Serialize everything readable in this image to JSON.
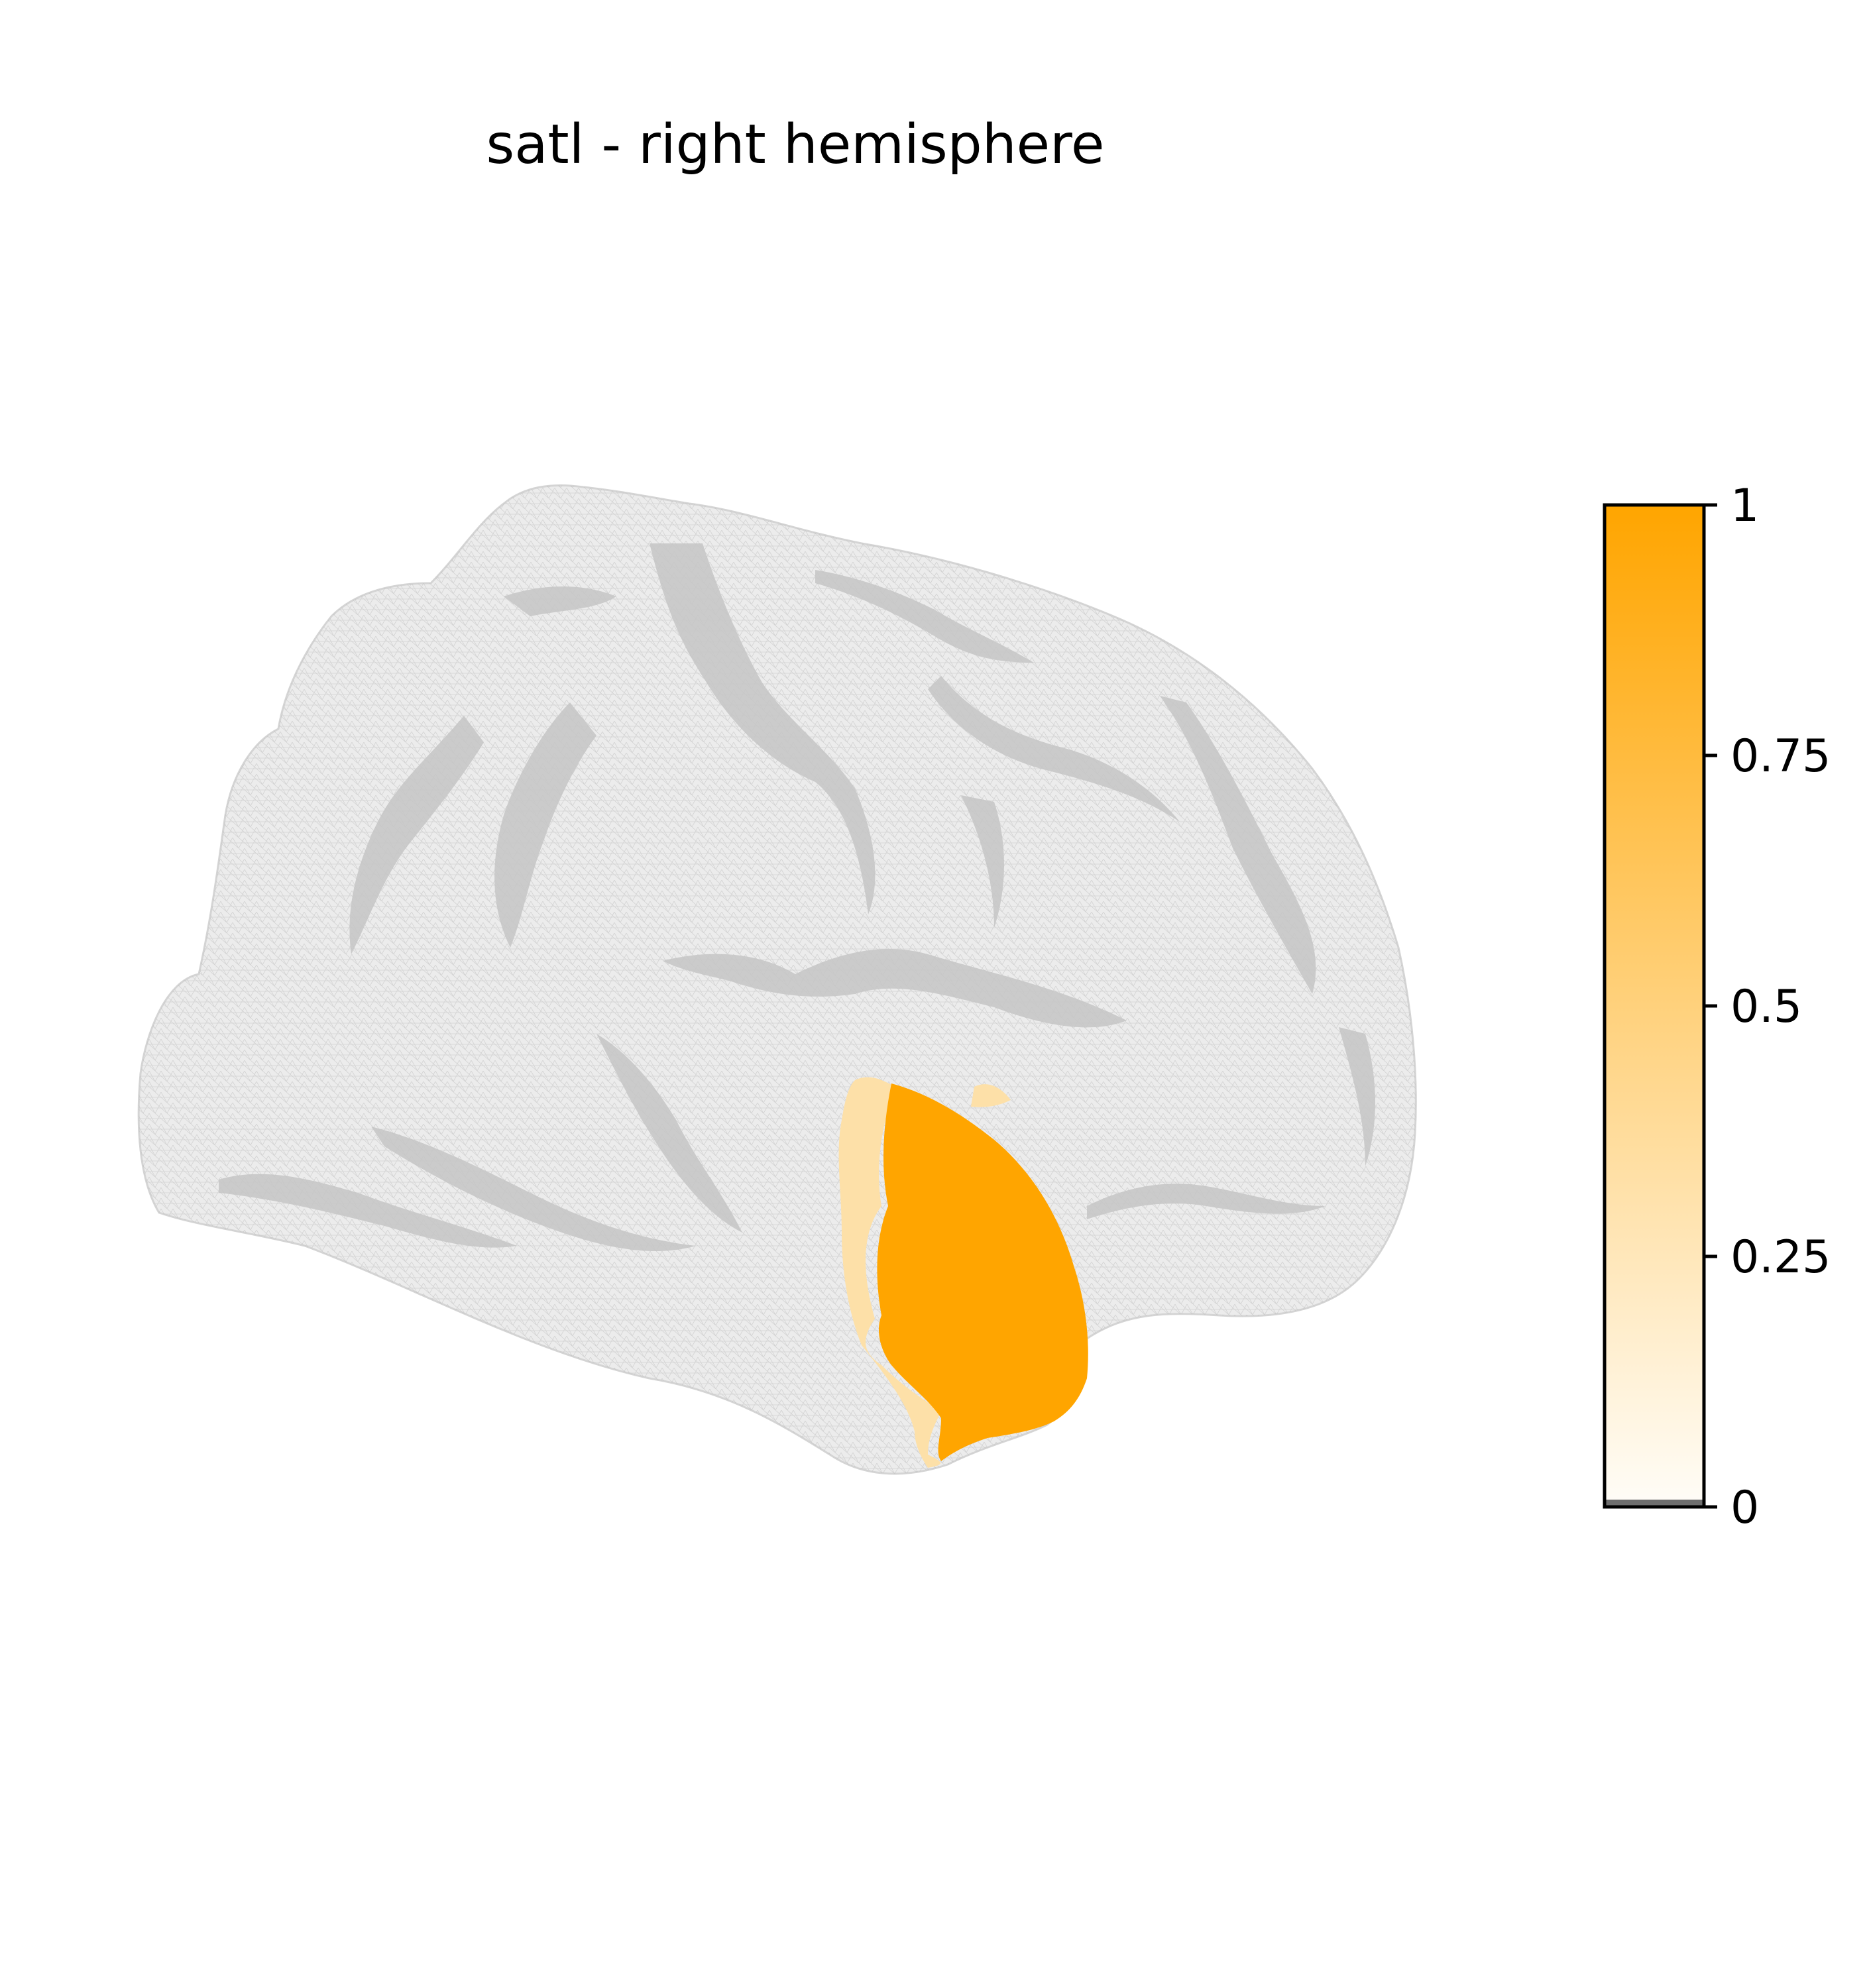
{
  "figure": {
    "title": "satl - right hemisphere"
  },
  "region": {
    "value": 1.0,
    "color": "#ffa500",
    "edge_color": "#fde0a8"
  },
  "surface": {
    "fill_color": "#ececec",
    "sulcus_color": "#c6c6c6",
    "mesh_color": "#b8b8b8"
  },
  "colorbar": {
    "colormap": "white-to-orange",
    "color_low": "#fffdf8",
    "color_high": "#ffa500",
    "min": 0,
    "max": 1,
    "ticks": [
      {
        "value": 1,
        "label": "1"
      },
      {
        "value": 0.75,
        "label": "0.75"
      },
      {
        "value": 0.5,
        "label": "0.5"
      },
      {
        "value": 0.25,
        "label": "0.25"
      },
      {
        "value": 0,
        "label": "0"
      }
    ]
  }
}
